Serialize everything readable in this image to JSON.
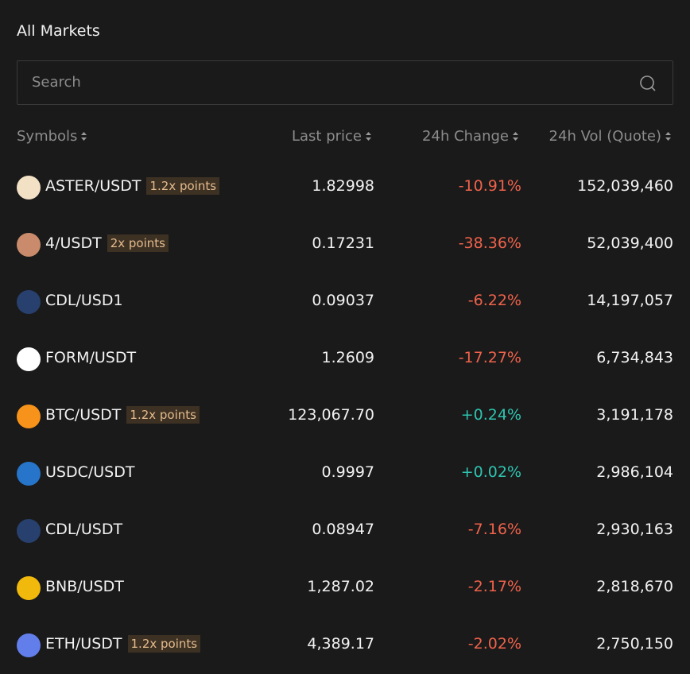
{
  "header": {
    "title": "All Markets"
  },
  "search": {
    "placeholder": "Search"
  },
  "table": {
    "columns": [
      "Symbols",
      "Last price",
      "24h Change",
      "24h Vol (Quote)"
    ],
    "rows": [
      {
        "symbol": "ASTER/USDT",
        "badge": "1.2x points",
        "price": "1.82998",
        "change": "-10.91%",
        "volume": "152,039,460"
      },
      {
        "symbol": "4/USDT",
        "badge": "2x points",
        "price": "0.17231",
        "change": "-38.36%",
        "volume": "52,039,400"
      },
      {
        "symbol": "CDL/USD1",
        "price": "0.09037",
        "change": "-6.22%",
        "volume": "14,197,057"
      },
      {
        "symbol": "FORM/USDT",
        "price": "1.2609",
        "change": "-17.27%",
        "volume": "6,734,843"
      },
      {
        "symbol": "BTC/USDT",
        "badge": "1.2x points",
        "price": "123,067.70",
        "change": "+0.24%",
        "volume": "3,191,178"
      },
      {
        "symbol": "USDC/USDT",
        "price": "0.9997",
        "change": "+0.02%",
        "volume": "2,986,104"
      },
      {
        "symbol": "CDL/USDT",
        "price": "0.08947",
        "change": "-7.16%",
        "volume": "2,930,163"
      },
      {
        "symbol": "BNB/USDT",
        "price": "1,287.02",
        "change": "-2.17%",
        "volume": "2,818,670"
      },
      {
        "symbol": "ETH/USDT",
        "badge": "1.2x points",
        "price": "4,389.17",
        "change": "-2.02%",
        "volume": "2,750,150"
      }
    ]
  }
}
